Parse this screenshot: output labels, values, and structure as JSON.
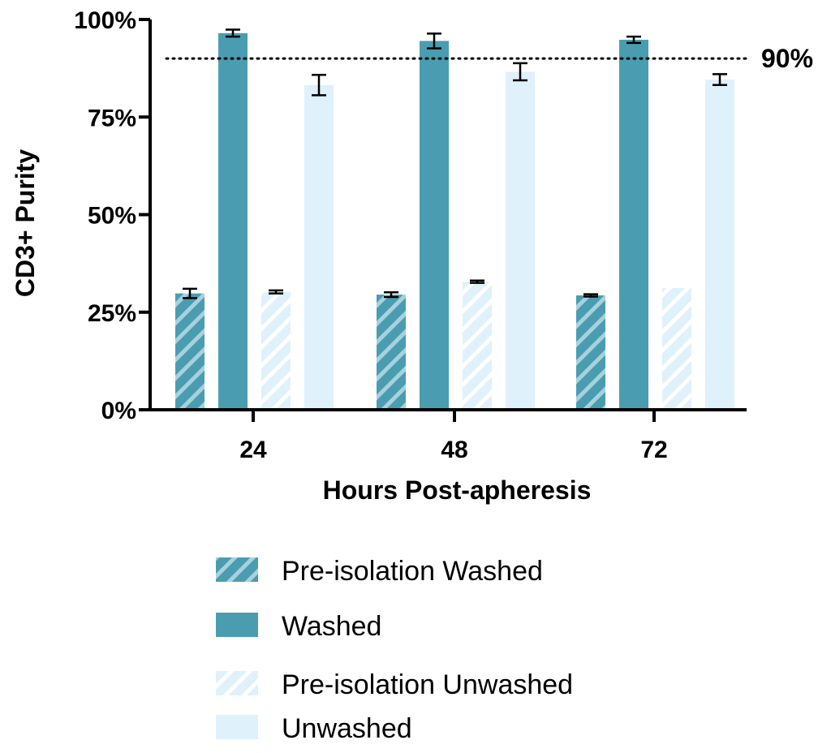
{
  "chart_data": {
    "type": "bar",
    "xlabel": "Hours Post-apheresis",
    "ylabel": "CD3+ Purity",
    "categories": [
      "24",
      "48",
      "72"
    ],
    "ylim": [
      0,
      100
    ],
    "yticks": [
      0,
      25,
      50,
      75,
      100
    ],
    "ytick_labels": [
      "0%",
      "25%",
      "50%",
      "75%",
      "100%"
    ],
    "reference_line": {
      "value": 90,
      "label": "90%",
      "style": "dotted"
    },
    "series": [
      {
        "name": "Pre-isolation Washed",
        "values": [
          29.8,
          29.5,
          29.3
        ],
        "errors": [
          1.2,
          0.6,
          0.3
        ],
        "color": "#4a9db0",
        "pattern": "hatched"
      },
      {
        "name": "Washed",
        "values": [
          96.5,
          94.5,
          94.8
        ],
        "errors": [
          0.9,
          1.9,
          0.8
        ],
        "color": "#4a9db0",
        "pattern": "solid"
      },
      {
        "name": "Pre-isolation Unwashed",
        "values": [
          30.2,
          32.8,
          31.2
        ],
        "errors": [
          0.4,
          0.3,
          0
        ],
        "color": "#dff1fb",
        "pattern": "hatched"
      },
      {
        "name": "Unwashed",
        "values": [
          83.2,
          86.6,
          84.6
        ],
        "errors": [
          2.6,
          2.2,
          1.4
        ],
        "color": "#dff1fb",
        "pattern": "solid"
      }
    ],
    "legend_position": "bottom",
    "grid": false
  }
}
